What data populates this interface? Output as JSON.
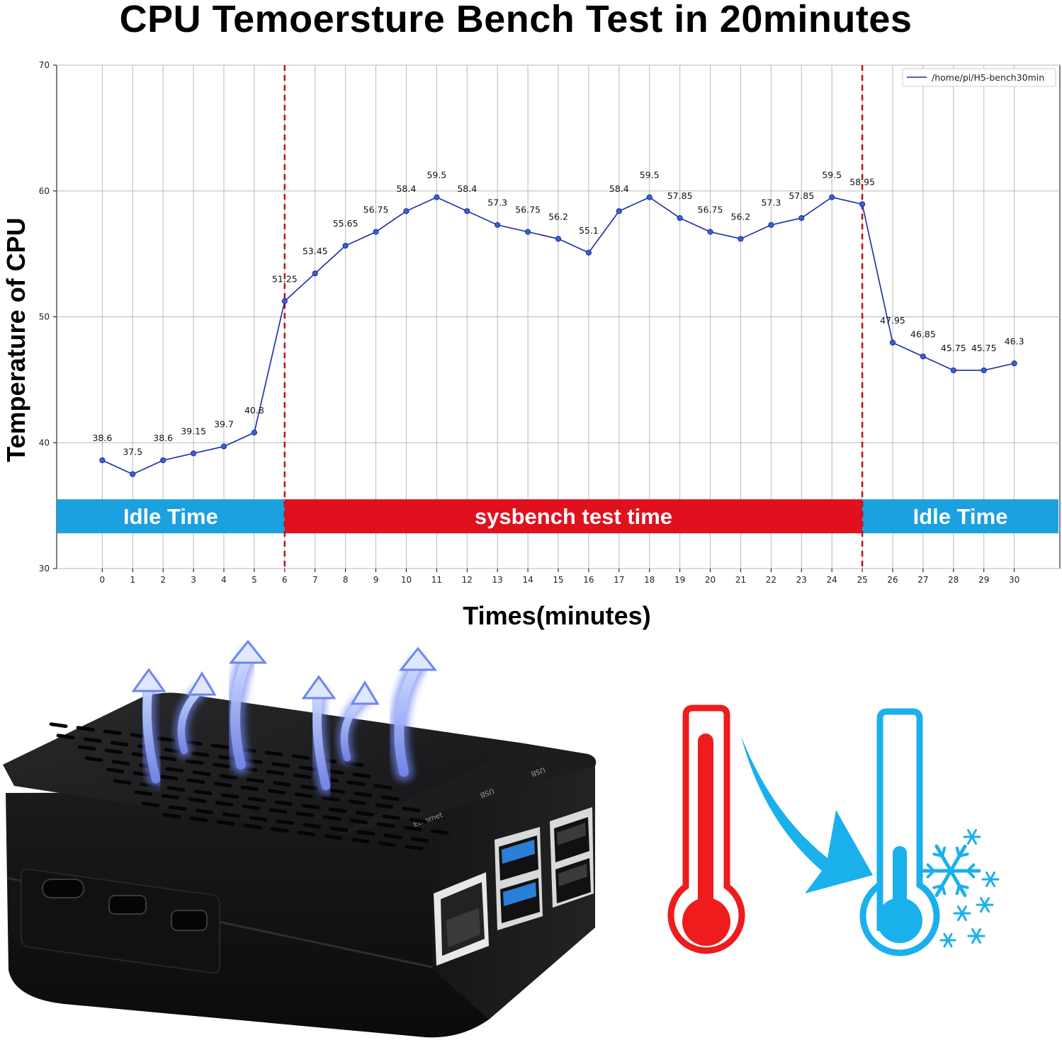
{
  "title": "CPU Temoersture Bench Test in 20minutes",
  "chart_data": {
    "type": "line",
    "title": "CPU Temoersture Bench Test in 20minutes",
    "xlabel": "Times(minutes)",
    "ylabel": "Temperature of CPU",
    "x": [
      0,
      1,
      2,
      3,
      4,
      5,
      6,
      7,
      8,
      9,
      10,
      11,
      12,
      13,
      14,
      15,
      16,
      17,
      18,
      19,
      20,
      21,
      22,
      23,
      24,
      25,
      26,
      27,
      28,
      29,
      30
    ],
    "series": [
      {
        "name": "/home/pi/H5-bench30min",
        "color": "#1b2aa8",
        "values": [
          38.6,
          37.5,
          38.6,
          39.15,
          39.7,
          40.8,
          51.25,
          53.45,
          55.65,
          56.75,
          58.4,
          59.5,
          58.4,
          57.3,
          56.75,
          56.2,
          55.1,
          58.4,
          59.5,
          57.85,
          56.75,
          56.2,
          57.3,
          57.85,
          59.5,
          58.95,
          47.95,
          46.85,
          45.75,
          45.75,
          46.3
        ]
      }
    ],
    "data_labels": [
      "38.6",
      "37.5",
      "38.6",
      "39.15",
      "39.7",
      "40.8",
      "51.25",
      "53.45",
      "55.65",
      "56.75",
      "58.4",
      "59.5",
      "58.4",
      "57.3",
      "56.75",
      "56.2",
      "55.1",
      "58.4",
      "59.5",
      "57.85",
      "56.75",
      "56.2",
      "57.3",
      "57.85",
      "59.5",
      "58.95",
      "47.95",
      "46.85",
      "45.75",
      "45.75",
      "46.3"
    ],
    "x_ticks": [
      "0",
      "1",
      "2",
      "3",
      "4",
      "5",
      "6",
      "7",
      "8",
      "9",
      "10",
      "11",
      "12",
      "13",
      "14",
      "15",
      "16",
      "17",
      "18",
      "19",
      "20",
      "21",
      "22",
      "23",
      "24",
      "25",
      "26",
      "27",
      "28",
      "29",
      "30"
    ],
    "y_ticks": [
      "30",
      "40",
      "50",
      "60",
      "70"
    ],
    "xlim": [
      -1.5,
      31.5
    ],
    "ylim": [
      30,
      70
    ],
    "grid": true,
    "legend_position": "top-right",
    "vlines": [
      6,
      25
    ],
    "vline_color": "#c0101a",
    "phases": [
      {
        "label": "Idle Time",
        "color": "#1ba0e0"
      },
      {
        "label": "sysbench test time",
        "color": "#e0101e"
      },
      {
        "label": "Idle Time",
        "color": "#1ba0e0"
      }
    ]
  },
  "product": {
    "port_labels": [
      "Ethernet",
      "USB",
      "USB"
    ],
    "hot_color": "#ee1c1c",
    "cold_color": "#1ab0ec",
    "icons": [
      "heat-arrows-icon",
      "hot-thermometer-icon",
      "cool-arrow-icon",
      "cold-thermometer-icon",
      "snowflake-icon"
    ]
  }
}
